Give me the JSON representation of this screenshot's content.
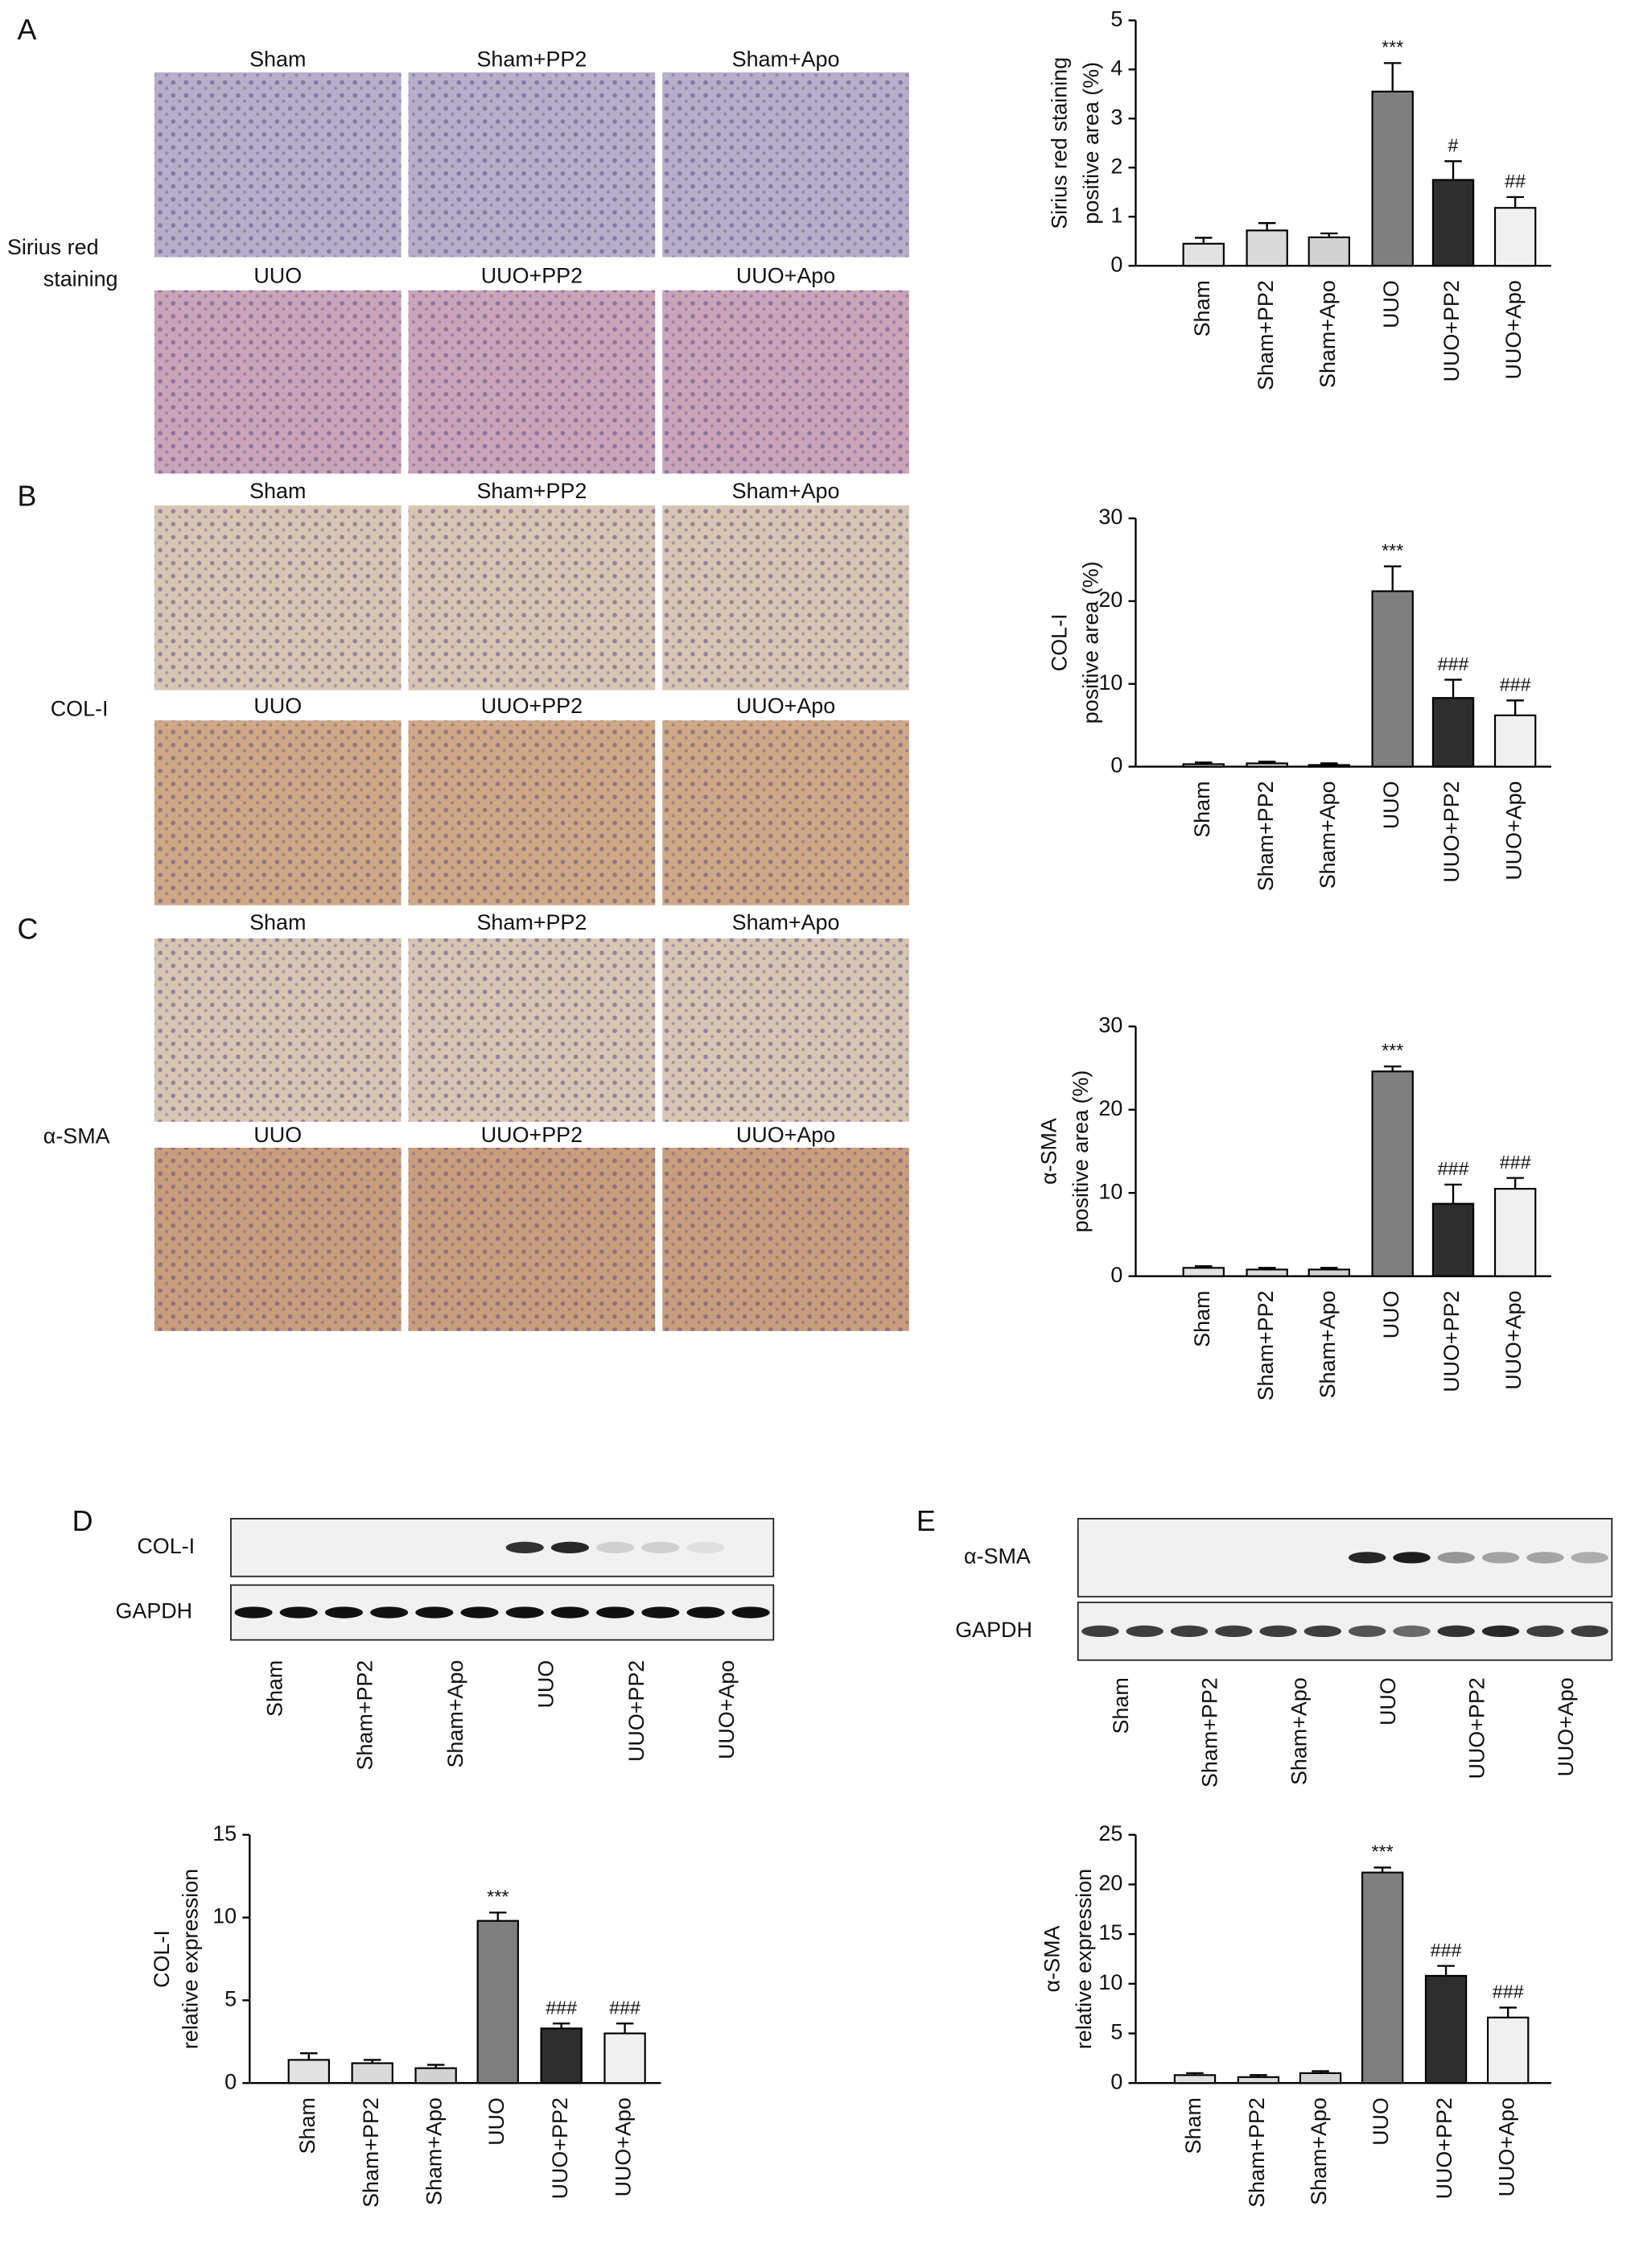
{
  "chart_data": [
    {
      "type": "bar",
      "ylabel": [
        "Sirius red staining",
        "positive area (%)"
      ],
      "categories": [
        "Sham",
        "Sham+PP2",
        "Sham+Apo",
        "UUO",
        "UUO+PP2",
        "UUO+Apo"
      ],
      "values": [
        0.45,
        0.72,
        0.58,
        3.55,
        1.75,
        1.18
      ],
      "errors": [
        0.12,
        0.15,
        0.08,
        0.58,
        0.38,
        0.22
      ],
      "colors": [
        "#e2e2e2",
        "#dadada",
        "#d2d2d2",
        "#7f7f7f",
        "#2e2e2e",
        "#f0f0f0"
      ],
      "ylim": [
        0,
        5
      ],
      "yticks": [
        0,
        1,
        2,
        3,
        4,
        5
      ],
      "annotations": [
        {
          "category": "UUO",
          "text": "***"
        },
        {
          "category": "UUO+PP2",
          "text": "#"
        },
        {
          "category": "UUO+Apo",
          "text": "##"
        }
      ]
    },
    {
      "type": "bar",
      "ylabel": [
        "COL-I",
        "positive area (%)"
      ],
      "categories": [
        "Sham",
        "Sham+PP2",
        "Sham+Apo",
        "UUO",
        "UUO+PP2",
        "UUO+Apo"
      ],
      "values": [
        0.3,
        0.4,
        0.2,
        21.2,
        8.3,
        6.2
      ],
      "errors": [
        0.2,
        0.2,
        0.2,
        3.0,
        2.2,
        1.8
      ],
      "colors": [
        "#e2e2e2",
        "#dadada",
        "#d2d2d2",
        "#7f7f7f",
        "#2e2e2e",
        "#f0f0f0"
      ],
      "ylim": [
        0,
        30
      ],
      "yticks": [
        0,
        10,
        20,
        30
      ],
      "annotations": [
        {
          "category": "UUO",
          "text": "***"
        },
        {
          "category": "UUO+PP2",
          "text": "###"
        },
        {
          "category": "UUO+Apo",
          "text": "###"
        }
      ]
    },
    {
      "type": "bar",
      "ylabel": [
        "α-SMA",
        "positive area (%)"
      ],
      "categories": [
        "Sham",
        "Sham+PP2",
        "Sham+Apo",
        "UUO",
        "UUO+PP2",
        "UUO+Apo"
      ],
      "values": [
        1.0,
        0.8,
        0.8,
        24.6,
        8.7,
        10.5
      ],
      "errors": [
        0.2,
        0.2,
        0.2,
        0.6,
        2.3,
        1.3
      ],
      "colors": [
        "#e2e2e2",
        "#dadada",
        "#d2d2d2",
        "#7f7f7f",
        "#2e2e2e",
        "#f0f0f0"
      ],
      "ylim": [
        0,
        30
      ],
      "yticks": [
        0,
        10,
        20,
        30
      ],
      "annotations": [
        {
          "category": "UUO",
          "text": "***"
        },
        {
          "category": "UUO+PP2",
          "text": "###"
        },
        {
          "category": "UUO+Apo",
          "text": "###"
        }
      ]
    },
    {
      "type": "bar",
      "ylabel": [
        "COL-I",
        "relative expression"
      ],
      "categories": [
        "Sham",
        "Sham+PP2",
        "Sham+Apo",
        "UUO",
        "UUO+PP2",
        "UUO+Apo"
      ],
      "values": [
        1.4,
        1.2,
        0.9,
        9.8,
        3.3,
        3.0
      ],
      "errors": [
        0.4,
        0.2,
        0.2,
        0.5,
        0.3,
        0.6
      ],
      "colors": [
        "#e2e2e2",
        "#dadada",
        "#d2d2d2",
        "#7f7f7f",
        "#2e2e2e",
        "#f0f0f0"
      ],
      "ylim": [
        0,
        15
      ],
      "yticks": [
        0,
        5,
        10,
        15
      ],
      "annotations": [
        {
          "category": "UUO",
          "text": "***"
        },
        {
          "category": "UUO+PP2",
          "text": "###"
        },
        {
          "category": "UUO+Apo",
          "text": "###"
        }
      ]
    },
    {
      "type": "bar",
      "ylabel": [
        "α-SMA",
        "relative expression"
      ],
      "categories": [
        "Sham",
        "Sham+PP2",
        "Sham+Apo",
        "UUO",
        "UUO+PP2",
        "UUO+Apo"
      ],
      "values": [
        0.8,
        0.6,
        1.0,
        21.2,
        10.8,
        6.6
      ],
      "errors": [
        0.2,
        0.2,
        0.2,
        0.5,
        1.0,
        1.0
      ],
      "colors": [
        "#e2e2e2",
        "#dadada",
        "#d2d2d2",
        "#7f7f7f",
        "#2e2e2e",
        "#f0f0f0"
      ],
      "ylim": [
        0,
        25
      ],
      "yticks": [
        0,
        5,
        10,
        15,
        20,
        25
      ],
      "annotations": [
        {
          "category": "UUO",
          "text": "***"
        },
        {
          "category": "UUO+PP2",
          "text": "###"
        },
        {
          "category": "UUO+Apo",
          "text": "###"
        }
      ]
    }
  ],
  "micrographs": [
    {
      "letter": "A",
      "row_label": [
        "Sirius red",
        "staining"
      ],
      "labels": [
        "Sham",
        "Sham+PP2",
        "Sham+Apo",
        "UUO",
        "UUO+PP2",
        "UUO+Apo"
      ]
    },
    {
      "letter": "B",
      "row_label": [
        "COL-I"
      ],
      "labels": [
        "Sham",
        "Sham+PP2",
        "Sham+Apo",
        "UUO",
        "UUO+PP2",
        "UUO+Apo"
      ]
    },
    {
      "letter": "C",
      "row_label": [
        "α-SMA"
      ],
      "labels": [
        "Sham",
        "Sham+PP2",
        "Sham+Apo",
        "UUO",
        "UUO+PP2",
        "UUO+Apo"
      ]
    }
  ],
  "blots": [
    {
      "letter": "D",
      "rows": [
        "COL-I",
        "GAPDH"
      ],
      "lanes": [
        "Sham",
        "Sham+PP2",
        "Sham+Apo",
        "UUO",
        "UUO+PP2",
        "UUO+Apo"
      ]
    },
    {
      "letter": "E",
      "rows": [
        "α-SMA",
        "GAPDH"
      ],
      "lanes": [
        "Sham",
        "Sham+PP2",
        "Sham+Apo",
        "UUO",
        "UUO+PP2",
        "UUO+Apo"
      ]
    }
  ]
}
